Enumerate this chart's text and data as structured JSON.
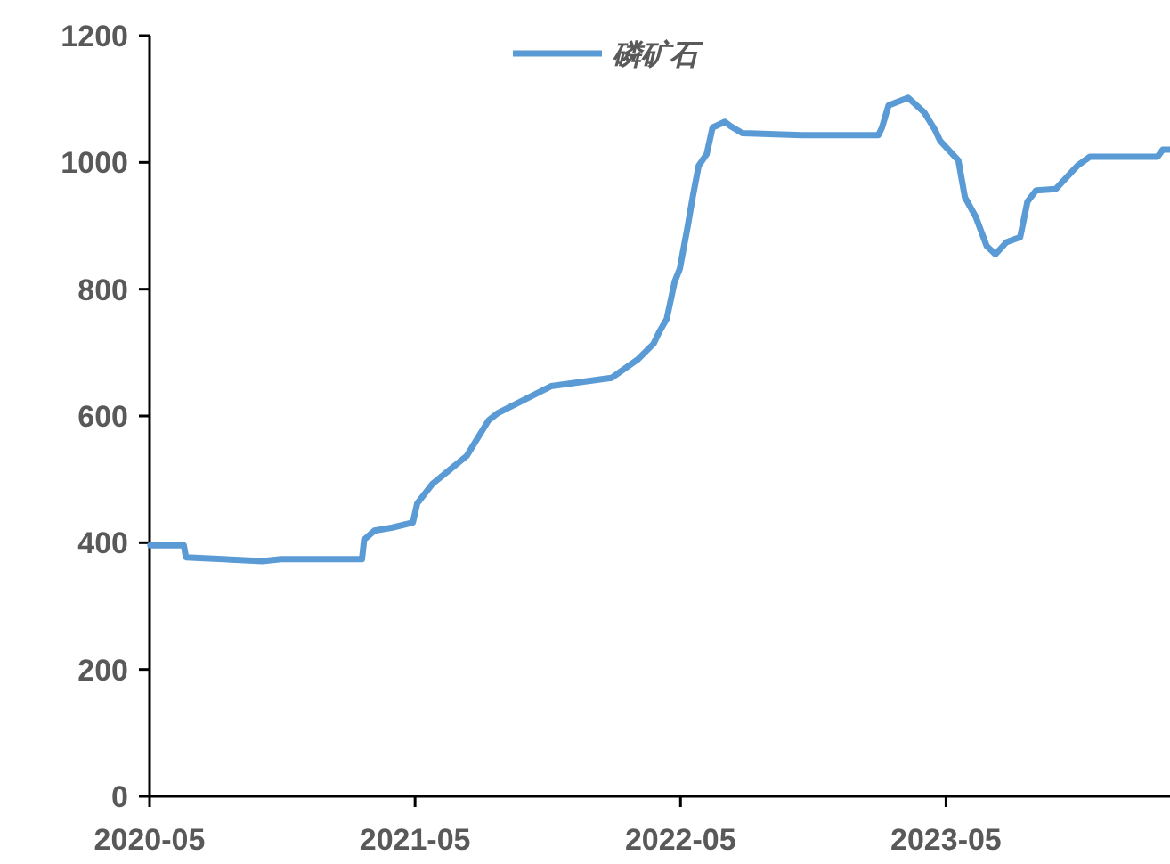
{
  "chart_data": {
    "type": "line",
    "xlim": [
      "2020-05-01",
      "2024-03-04"
    ],
    "xticks": [
      "2020-05",
      "2021-05",
      "2022-05",
      "2023-05"
    ],
    "ylim": [
      0,
      1200
    ],
    "yticks": [
      0,
      200,
      400,
      600,
      800,
      1000,
      1200
    ],
    "grid": false,
    "legend": "top",
    "marker": "none",
    "line_style": "solid",
    "series": [
      {
        "name": "磷矿石",
        "color": "#5b9bd5",
        "x": [
          "2020-05-02",
          "2020-06-17",
          "2020-06-20",
          "2020-10-03",
          "2020-10-29",
          "2021-02-17",
          "2021-02-20",
          "2021-03-06",
          "2021-03-31",
          "2021-04-28",
          "2021-05-04",
          "2021-05-25",
          "2021-07-11",
          "2021-08-10",
          "2021-08-22",
          "2021-11-04",
          "2022-01-26",
          "2022-03-03",
          "2022-03-25",
          "2022-04-02",
          "2022-04-12",
          "2022-04-23",
          "2022-04-30",
          "2022-05-11",
          "2022-05-18",
          "2022-05-26",
          "2022-06-06",
          "2022-06-14",
          "2022-07-01",
          "2022-07-09",
          "2022-07-25",
          "2022-10-15",
          "2023-01-28",
          "2023-02-02",
          "2023-02-11",
          "2023-03-10",
          "2023-04-01",
          "2023-04-16",
          "2023-04-23",
          "2023-05-18",
          "2023-05-27",
          "2023-06-11",
          "2023-06-26",
          "2023-07-08",
          "2023-07-23",
          "2023-08-11",
          "2023-08-21",
          "2023-09-02",
          "2023-09-29",
          "2023-10-29",
          "2023-11-15",
          "2024-02-16",
          "2024-02-23",
          "2024-03-04"
        ],
        "values": [
          396,
          396,
          377,
          371,
          374,
          374,
          405,
          419,
          424,
          432,
          462,
          493,
          537,
          593,
          604,
          647,
          660,
          689,
          714,
          733,
          753,
          812,
          832,
          900,
          947,
          995,
          1013,
          1055,
          1064,
          1057,
          1046,
          1043,
          1043,
          1055,
          1090,
          1102,
          1079,
          1051,
          1034,
          1003,
          945,
          914,
          868,
          855,
          874,
          882,
          938,
          956,
          958,
          995,
          1009,
          1009,
          1020,
          1020
        ]
      }
    ]
  }
}
